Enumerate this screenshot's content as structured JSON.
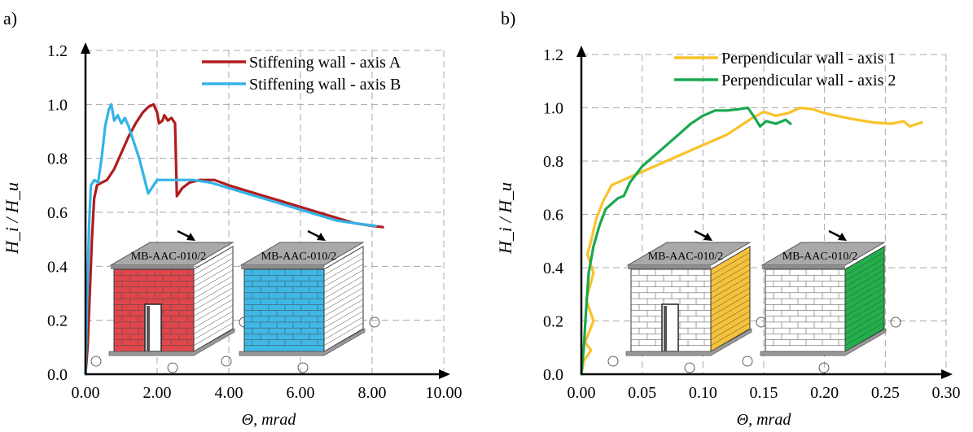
{
  "panels": [
    {
      "panel_label": "a)",
      "model_labels": [
        "MB-AAC-010/2",
        "MB-AAC-010/2"
      ],
      "wall_colors": [
        "#e0474c",
        "#3fb8e6"
      ],
      "highlight": [
        "front",
        "front"
      ]
    },
    {
      "panel_label": "b)",
      "model_labels": [
        "MB-AAC-010/2",
        "MB-AAC-010/2"
      ],
      "wall_colors": [
        "#f6c23a",
        "#22b04a"
      ],
      "highlight": [
        "side",
        "side"
      ]
    }
  ],
  "chart_data": [
    {
      "type": "line",
      "xlabel": "Θ, mrad",
      "ylabel": "H_i / H_u",
      "xlim": [
        0,
        10
      ],
      "ylim": [
        0,
        1.2
      ],
      "xticks": [
        0,
        2,
        4,
        6,
        8,
        10
      ],
      "xtick_labels": [
        "0.00",
        "2.00",
        "4.00",
        "6.00",
        "8.00",
        "10.00"
      ],
      "yticks": [
        0,
        0.2,
        0.4,
        0.6,
        0.8,
        1.0,
        1.2
      ],
      "ytick_labels": [
        "0.0",
        "0.2",
        "0.4",
        "0.6",
        "0.8",
        "1.0",
        "1.2"
      ],
      "grid": true,
      "legend_position": "top-right",
      "series": [
        {
          "name": "Stiffening wall - axis A",
          "color": "#b01c1c",
          "points": [
            [
              0,
              0
            ],
            [
              0.06,
              0.1
            ],
            [
              0.12,
              0.3
            ],
            [
              0.18,
              0.5
            ],
            [
              0.24,
              0.65
            ],
            [
              0.32,
              0.7
            ],
            [
              0.45,
              0.71
            ],
            [
              0.6,
              0.72
            ],
            [
              0.8,
              0.76
            ],
            [
              1.0,
              0.82
            ],
            [
              1.2,
              0.88
            ],
            [
              1.4,
              0.93
            ],
            [
              1.6,
              0.97
            ],
            [
              1.75,
              0.99
            ],
            [
              1.9,
              1.0
            ],
            [
              2.0,
              0.97
            ],
            [
              2.05,
              0.93
            ],
            [
              2.15,
              0.94
            ],
            [
              2.2,
              0.96
            ],
            [
              2.3,
              0.94
            ],
            [
              2.4,
              0.95
            ],
            [
              2.5,
              0.93
            ],
            [
              2.55,
              0.66
            ],
            [
              2.7,
              0.69
            ],
            [
              2.9,
              0.71
            ],
            [
              3.2,
              0.72
            ],
            [
              3.6,
              0.72
            ],
            [
              4.0,
              0.7
            ],
            [
              4.5,
              0.68
            ],
            [
              5.0,
              0.66
            ],
            [
              5.5,
              0.64
            ],
            [
              6.0,
              0.62
            ],
            [
              6.5,
              0.6
            ],
            [
              7.0,
              0.58
            ],
            [
              7.5,
              0.56
            ],
            [
              8.0,
              0.55
            ],
            [
              8.3,
              0.545
            ]
          ]
        },
        {
          "name": "Stiffening wall - axis B",
          "color": "#33b3e8",
          "points": [
            [
              0,
              0
            ],
            [
              0.05,
              0.3
            ],
            [
              0.1,
              0.55
            ],
            [
              0.15,
              0.7
            ],
            [
              0.25,
              0.72
            ],
            [
              0.35,
              0.71
            ],
            [
              0.45,
              0.8
            ],
            [
              0.55,
              0.92
            ],
            [
              0.65,
              0.98
            ],
            [
              0.72,
              1.0
            ],
            [
              0.8,
              0.94
            ],
            [
              0.9,
              0.96
            ],
            [
              1.0,
              0.93
            ],
            [
              1.1,
              0.95
            ],
            [
              1.2,
              0.92
            ],
            [
              1.5,
              0.8
            ],
            [
              1.75,
              0.67
            ],
            [
              2.0,
              0.72
            ],
            [
              2.4,
              0.72
            ],
            [
              3.0,
              0.72
            ],
            [
              3.5,
              0.71
            ],
            [
              4.0,
              0.69
            ],
            [
              4.5,
              0.67
            ],
            [
              5.0,
              0.65
            ],
            [
              5.5,
              0.63
            ],
            [
              6.0,
              0.61
            ],
            [
              6.5,
              0.59
            ],
            [
              7.0,
              0.57
            ],
            [
              7.5,
              0.56
            ],
            [
              8.1,
              0.55
            ]
          ]
        }
      ]
    },
    {
      "type": "line",
      "xlabel": "Θ, mrad",
      "ylabel": "H_i / H_u",
      "xlim": [
        0,
        0.3
      ],
      "ylim": [
        0,
        1.2
      ],
      "xticks": [
        0,
        0.05,
        0.1,
        0.15,
        0.2,
        0.25,
        0.3
      ],
      "xtick_labels": [
        "0.00",
        "0.05",
        "0.10",
        "0.15",
        "0.20",
        "0.25",
        "0.30"
      ],
      "yticks": [
        0,
        0.2,
        0.4,
        0.6,
        0.8,
        1.0,
        1.2
      ],
      "ytick_labels": [
        "0.0",
        "0.2",
        "0.4",
        "0.6",
        "0.8",
        "1.0",
        "1.2"
      ],
      "grid": true,
      "legend_position": "top-center",
      "series": [
        {
          "name": "Perpendicular wall - axis 1",
          "color": "#f8c22a",
          "points": [
            [
              0,
              0
            ],
            [
              0.002,
              0.05
            ],
            [
              0.008,
              0.09
            ],
            [
              0.003,
              0.12
            ],
            [
              0.01,
              0.2
            ],
            [
              0.004,
              0.28
            ],
            [
              0.01,
              0.38
            ],
            [
              0.005,
              0.45
            ],
            [
              0.008,
              0.5
            ],
            [
              0.012,
              0.58
            ],
            [
              0.018,
              0.65
            ],
            [
              0.025,
              0.71
            ],
            [
              0.03,
              0.72
            ],
            [
              0.04,
              0.74
            ],
            [
              0.05,
              0.76
            ],
            [
              0.06,
              0.78
            ],
            [
              0.08,
              0.82
            ],
            [
              0.1,
              0.86
            ],
            [
              0.12,
              0.9
            ],
            [
              0.13,
              0.93
            ],
            [
              0.14,
              0.96
            ],
            [
              0.15,
              0.985
            ],
            [
              0.16,
              0.97
            ],
            [
              0.17,
              0.98
            ],
            [
              0.18,
              1.0
            ],
            [
              0.19,
              0.995
            ],
            [
              0.2,
              0.98
            ],
            [
              0.22,
              0.96
            ],
            [
              0.24,
              0.945
            ],
            [
              0.255,
              0.94
            ],
            [
              0.265,
              0.95
            ],
            [
              0.27,
              0.93
            ],
            [
              0.28,
              0.945
            ]
          ]
        },
        {
          "name": "Perpendicular wall - axis 2",
          "color": "#1aa84f",
          "points": [
            [
              0,
              0
            ],
            [
              0.002,
              0.1
            ],
            [
              0.004,
              0.25
            ],
            [
              0.006,
              0.38
            ],
            [
              0.01,
              0.48
            ],
            [
              0.015,
              0.56
            ],
            [
              0.02,
              0.62
            ],
            [
              0.03,
              0.66
            ],
            [
              0.035,
              0.67
            ],
            [
              0.04,
              0.72
            ],
            [
              0.045,
              0.75
            ],
            [
              0.05,
              0.78
            ],
            [
              0.06,
              0.82
            ],
            [
              0.07,
              0.86
            ],
            [
              0.08,
              0.9
            ],
            [
              0.09,
              0.94
            ],
            [
              0.1,
              0.97
            ],
            [
              0.11,
              0.99
            ],
            [
              0.12,
              0.99
            ],
            [
              0.13,
              0.995
            ],
            [
              0.137,
              1.0
            ],
            [
              0.143,
              0.96
            ],
            [
              0.147,
              0.93
            ],
            [
              0.152,
              0.95
            ],
            [
              0.16,
              0.94
            ],
            [
              0.168,
              0.955
            ],
            [
              0.172,
              0.94
            ]
          ]
        }
      ]
    }
  ]
}
